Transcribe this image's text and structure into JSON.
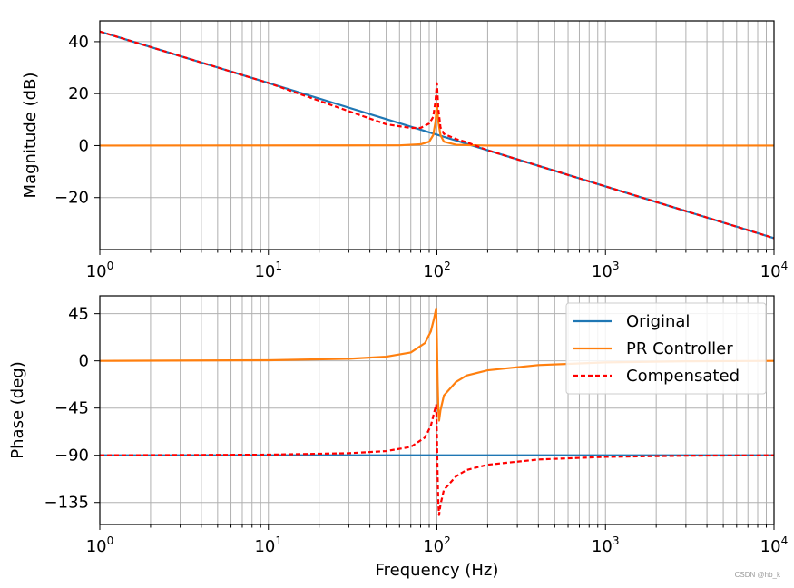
{
  "watermark": "CSDN @hb_k",
  "chart_data": [
    {
      "type": "line",
      "panel": "magnitude",
      "xscale": "log",
      "xlim": [
        1,
        10000
      ],
      "ylim": [
        -40,
        48
      ],
      "ylabel": "Magnitude (dB)",
      "xlabel": "",
      "grid": true,
      "xticks": [
        {
          "base": "10",
          "exp": "0"
        },
        {
          "base": "10",
          "exp": "1"
        },
        {
          "base": "10",
          "exp": "2"
        },
        {
          "base": "10",
          "exp": "3"
        },
        {
          "base": "10",
          "exp": "4"
        }
      ],
      "yticks": [
        {
          "value": 40,
          "label": "40"
        },
        {
          "value": 20,
          "label": "20"
        },
        {
          "value": 0,
          "label": "0"
        },
        {
          "value": -20,
          "label": "−20"
        }
      ],
      "series": [
        {
          "name": "Original",
          "color": "#1f77b4",
          "style": "solid",
          "points": [
            [
              1,
              43.9
            ],
            [
              10,
              24.1
            ],
            [
              100,
              4.2
            ],
            [
              1000,
              -15.7
            ],
            [
              10000,
              -35.6
            ]
          ]
        },
        {
          "name": "PR Controller",
          "color": "#ff7f0e",
          "style": "solid",
          "points": [
            [
              1,
              0
            ],
            [
              60,
              0.1
            ],
            [
              80,
              0.5
            ],
            [
              90,
              1.5
            ],
            [
              95,
              4
            ],
            [
              98,
              9
            ],
            [
              100,
              16
            ],
            [
              102,
              9
            ],
            [
              105,
              4
            ],
            [
              110,
              1.5
            ],
            [
              130,
              0.3
            ],
            [
              200,
              0
            ],
            [
              10000,
              0
            ]
          ]
        },
        {
          "name": "Compensated",
          "color": "#ff0000",
          "style": "dashed",
          "points": [
            [
              1,
              43.9
            ],
            [
              10,
              24.1
            ],
            [
              50,
              8.2
            ],
            [
              70,
              6.8
            ],
            [
              80,
              6.8
            ],
            [
              90,
              8.5
            ],
            [
              95,
              11
            ],
            [
              98,
              17
            ],
            [
              100,
              24
            ],
            [
              102,
              14
            ],
            [
              105,
              7
            ],
            [
              110,
              4.5
            ],
            [
              130,
              2.5
            ],
            [
              150,
              1.3
            ],
            [
              200,
              -1.8
            ],
            [
              1000,
              -15.7
            ],
            [
              10000,
              -35.6
            ]
          ]
        }
      ]
    },
    {
      "type": "line",
      "panel": "phase",
      "xscale": "log",
      "xlim": [
        1,
        10000
      ],
      "ylim": [
        -156,
        62
      ],
      "ylabel": "Phase (deg)",
      "xlabel": "Frequency (Hz)",
      "grid": true,
      "legend": "top-right",
      "xticks": [
        {
          "base": "10",
          "exp": "0"
        },
        {
          "base": "10",
          "exp": "1"
        },
        {
          "base": "10",
          "exp": "2"
        },
        {
          "base": "10",
          "exp": "3"
        },
        {
          "base": "10",
          "exp": "4"
        }
      ],
      "yticks": [
        {
          "value": 45,
          "label": "45"
        },
        {
          "value": 0,
          "label": "0"
        },
        {
          "value": -45,
          "label": "−45"
        },
        {
          "value": -90,
          "label": "−90"
        },
        {
          "value": -135,
          "label": "−135"
        }
      ],
      "series": [
        {
          "name": "Original",
          "color": "#1f77b4",
          "style": "solid",
          "points": [
            [
              1,
              -90
            ],
            [
              10000,
              -90
            ]
          ]
        },
        {
          "name": "PR Controller",
          "color": "#ff7f0e",
          "style": "solid",
          "points": [
            [
              1,
              0
            ],
            [
              10,
              0.6
            ],
            [
              30,
              2
            ],
            [
              50,
              4
            ],
            [
              70,
              8
            ],
            [
              85,
              17
            ],
            [
              92,
              28
            ],
            [
              96,
              40
            ],
            [
              99,
              50
            ],
            [
              100,
              20
            ],
            [
              101,
              -20
            ],
            [
              102,
              -47
            ],
            [
              103,
              -57
            ],
            [
              105,
              -47
            ],
            [
              110,
              -33
            ],
            [
              130,
              -20
            ],
            [
              150,
              -14
            ],
            [
              200,
              -9
            ],
            [
              400,
              -4
            ],
            [
              1000,
              -1.5
            ],
            [
              3000,
              -0.4
            ],
            [
              10000,
              0
            ]
          ]
        },
        {
          "name": "Compensated",
          "color": "#ff0000",
          "style": "dashed",
          "points": [
            [
              1,
              -90
            ],
            [
              10,
              -89.4
            ],
            [
              30,
              -88
            ],
            [
              50,
              -86
            ],
            [
              70,
              -82
            ],
            [
              85,
              -73
            ],
            [
              92,
              -62
            ],
            [
              96,
              -50
            ],
            [
              99,
              -42
            ],
            [
              100,
              -70
            ],
            [
              101,
              -110
            ],
            [
              102,
              -137
            ],
            [
              103,
              -147
            ],
            [
              105,
              -137
            ],
            [
              110,
              -123
            ],
            [
              130,
              -110
            ],
            [
              150,
              -104
            ],
            [
              200,
              -99
            ],
            [
              400,
              -94
            ],
            [
              1000,
              -91.5
            ],
            [
              3000,
              -90.4
            ],
            [
              10000,
              -90
            ]
          ]
        }
      ]
    }
  ]
}
